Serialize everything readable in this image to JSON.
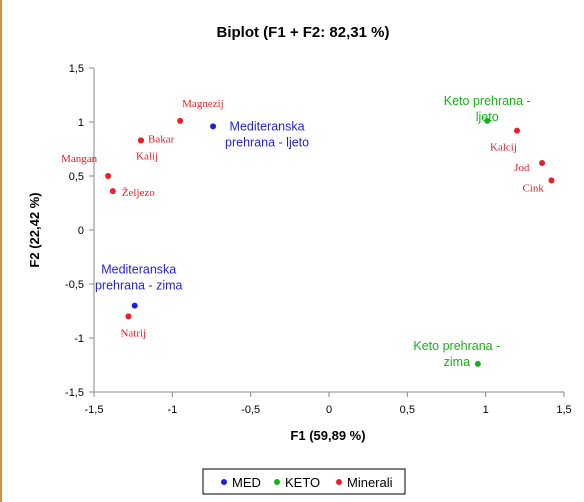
{
  "chart_data": {
    "type": "scatter",
    "title": "Biplot (F1 + F2: 82,31 %)",
    "xlabel": "F1 (59,89 %)",
    "ylabel": "F2 (22,42 %)",
    "xlim": [
      -1.5,
      1.5
    ],
    "ylim": [
      -1.5,
      1.5
    ],
    "x_ticks": [
      "-1,5",
      "-1",
      "-0,5",
      "0",
      "0,5",
      "1",
      "1,5"
    ],
    "y_ticks": [
      "1,5",
      "1",
      "0,5",
      "0",
      "-0,5",
      "-1",
      "-1,5"
    ],
    "grid": false,
    "legend_position": "bottom",
    "series": [
      {
        "name": "MED",
        "color": "#1f1fe0",
        "points": [
          {
            "label": "Mediteranska\nprehrana - ljeto",
            "x": -0.74,
            "y": 0.96
          },
          {
            "label": "Mediteranska\nprehrana - zima",
            "x": -1.24,
            "y": -0.7
          }
        ]
      },
      {
        "name": "KETO",
        "color": "#16b316",
        "points": [
          {
            "label": "Keto prehrana -\nljeto",
            "x": 1.01,
            "y": 1.01
          },
          {
            "label": "Keto prehrana -\nzima",
            "x": 0.95,
            "y": -1.24
          }
        ]
      },
      {
        "name": "Minerali",
        "color": "#ee1c24",
        "points": [
          {
            "label": "Magnezij",
            "x": -0.95,
            "y": 1.01
          },
          {
            "label": "Bakar",
            "x": -1.2,
            "y": 0.83
          },
          {
            "label": "Kalij",
            "x": -1.2,
            "y": 0.83
          },
          {
            "label": "Mangan",
            "x": -1.41,
            "y": 0.5
          },
          {
            "label": "Željezo",
            "x": -1.38,
            "y": 0.36
          },
          {
            "label": "Natrij",
            "x": -1.28,
            "y": -0.8
          },
          {
            "label": "Kalcij",
            "x": 1.2,
            "y": 0.92
          },
          {
            "label": "Jod",
            "x": 1.36,
            "y": 0.62
          },
          {
            "label": "Cink",
            "x": 1.42,
            "y": 0.46
          }
        ]
      }
    ]
  }
}
